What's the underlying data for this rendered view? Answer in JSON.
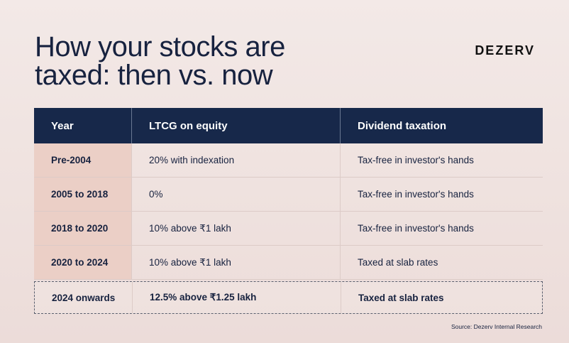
{
  "title": {
    "line1": "How your stocks are",
    "line2": "taxed: then vs. now"
  },
  "brand": "DEZERV",
  "table": {
    "headers": [
      "Year",
      "LTCG on equity",
      "Dividend taxation"
    ],
    "rows": [
      [
        "Pre-2004",
        "20% with indexation",
        "Tax-free in investor's hands"
      ],
      [
        "2005 to 2018",
        "0%",
        "Tax-free in investor's hands"
      ],
      [
        "2018 to 2020",
        "10% above ₹1 lakh",
        "Tax-free in investor's hands"
      ],
      [
        "2020 to 2024",
        "10% above ₹1 lakh",
        "Taxed at slab rates"
      ],
      [
        "2024 onwards",
        "12.5% above ₹1.25 lakh",
        "Taxed at slab rates"
      ]
    ]
  },
  "source": "Source: Dezerv Internal Research",
  "colors": {
    "header_bg": "#17284a",
    "year_col_bg": "#ebcfc6",
    "text": "#17223f"
  }
}
